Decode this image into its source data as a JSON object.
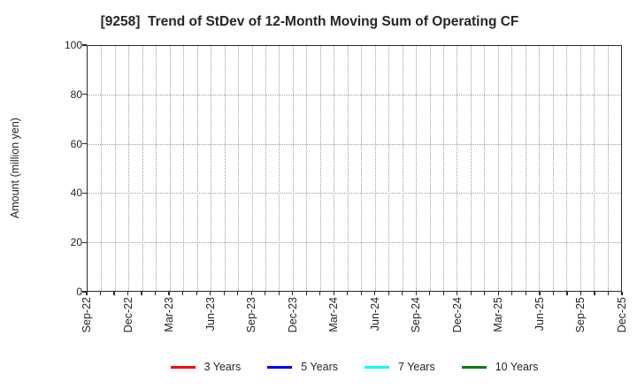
{
  "title": "[9258]  Trend of StDev of 12-Month Moving Sum of Operating CF",
  "chart_data": {
    "type": "line",
    "title": "[9258]  Trend of StDev of 12-Month Moving Sum of Operating CF",
    "xlabel": "",
    "ylabel": "Amount (million yen)",
    "ylim": [
      0,
      100
    ],
    "yticks": [
      0,
      20,
      40,
      60,
      80,
      100
    ],
    "x_axis": {
      "start": "Sep-22",
      "end": "Dec-25",
      "month_intervals": 39,
      "labeled_ticks": [
        "Sep-22",
        "Dec-22",
        "Mar-23",
        "Jun-23",
        "Sep-23",
        "Dec-23",
        "Mar-24",
        "Jun-24",
        "Sep-24",
        "Dec-24",
        "Mar-25",
        "Jun-25",
        "Sep-25",
        "Dec-25"
      ],
      "labeled_tick_month_indices": [
        0,
        3,
        6,
        9,
        12,
        15,
        18,
        21,
        24,
        27,
        30,
        33,
        36,
        39
      ]
    },
    "grid": {
      "visible": true,
      "style": "dotted",
      "color": "#9e9e9e",
      "vertical_every_month": true
    },
    "series": [
      {
        "name": "3 Years",
        "color": "#ff0000",
        "values": []
      },
      {
        "name": "5 Years",
        "color": "#0000ff",
        "values": []
      },
      {
        "name": "7 Years",
        "color": "#00ffff",
        "values": []
      },
      {
        "name": "10 Years",
        "color": "#008000",
        "values": []
      }
    ],
    "legend_position": "bottom"
  },
  "colors": {
    "background": "#ffffff",
    "frame": "#2b2b2b",
    "text": "#262626",
    "gridline": "#9e9e9e"
  }
}
